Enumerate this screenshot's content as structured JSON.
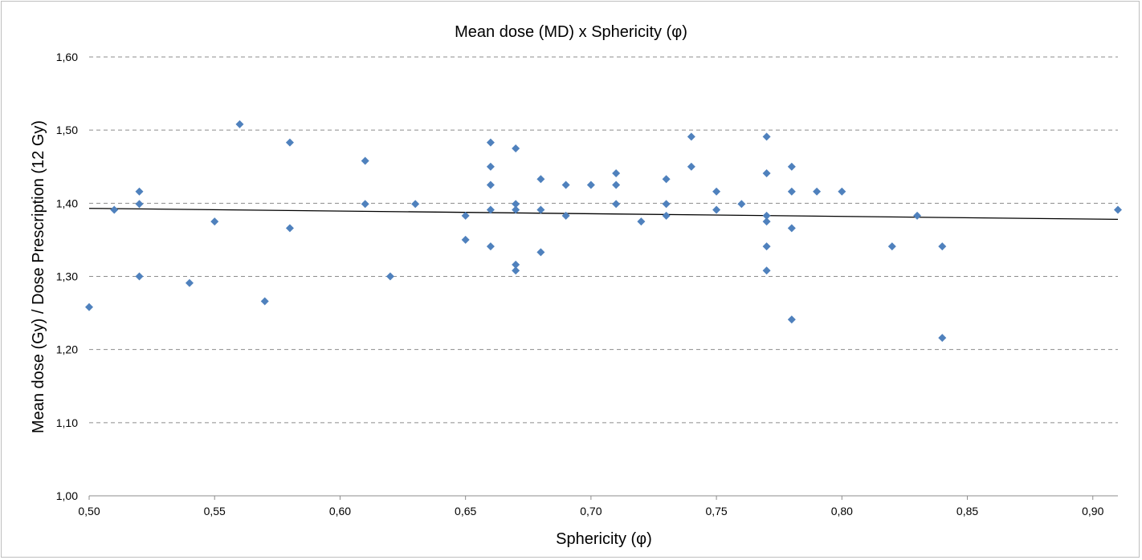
{
  "chart_data": {
    "type": "scatter",
    "title": "Mean dose (MD) x Sphericity (φ)",
    "xlabel": "Sphericity (φ)",
    "ylabel": "Mean dose (Gy) / Dose Prescription (12 Gy)",
    "xlim": [
      0.5,
      0.91
    ],
    "ylim": [
      1.0,
      1.6
    ],
    "x_ticks": [
      "0,50",
      "0,55",
      "0,60",
      "0,65",
      "0,70",
      "0,75",
      "0,80",
      "0,85",
      "0,90"
    ],
    "y_ticks": [
      "1,00",
      "1,10",
      "1,20",
      "1,30",
      "1,40",
      "1,50",
      "1,60"
    ],
    "grid": "horizontal-dashed",
    "legend": "none",
    "marker_color": "#4f81bd",
    "trendline": {
      "type": "linear",
      "y_at_xmin": 1.393,
      "y_at_xmax": 1.378
    },
    "points": [
      [
        0.5,
        1.258
      ],
      [
        0.51,
        1.391
      ],
      [
        0.52,
        1.416
      ],
      [
        0.52,
        1.399
      ],
      [
        0.52,
        1.3
      ],
      [
        0.54,
        1.291
      ],
      [
        0.55,
        1.375
      ],
      [
        0.56,
        1.508
      ],
      [
        0.57,
        1.266
      ],
      [
        0.58,
        1.483
      ],
      [
        0.58,
        1.366
      ],
      [
        0.61,
        1.458
      ],
      [
        0.61,
        1.399
      ],
      [
        0.62,
        1.3
      ],
      [
        0.63,
        1.399
      ],
      [
        0.65,
        1.383
      ],
      [
        0.65,
        1.35
      ],
      [
        0.66,
        1.483
      ],
      [
        0.66,
        1.45
      ],
      [
        0.66,
        1.425
      ],
      [
        0.66,
        1.391
      ],
      [
        0.66,
        1.341
      ],
      [
        0.67,
        1.475
      ],
      [
        0.67,
        1.399
      ],
      [
        0.67,
        1.391
      ],
      [
        0.67,
        1.316
      ],
      [
        0.67,
        1.308
      ],
      [
        0.68,
        1.433
      ],
      [
        0.68,
        1.391
      ],
      [
        0.68,
        1.333
      ],
      [
        0.69,
        1.425
      ],
      [
        0.69,
        1.383
      ],
      [
        0.7,
        1.425
      ],
      [
        0.71,
        1.441
      ],
      [
        0.71,
        1.425
      ],
      [
        0.71,
        1.399
      ],
      [
        0.72,
        1.375
      ],
      [
        0.73,
        1.433
      ],
      [
        0.73,
        1.399
      ],
      [
        0.73,
        1.383
      ],
      [
        0.74,
        1.491
      ],
      [
        0.74,
        1.45
      ],
      [
        0.75,
        1.416
      ],
      [
        0.75,
        1.391
      ],
      [
        0.76,
        1.399
      ],
      [
        0.77,
        1.491
      ],
      [
        0.77,
        1.441
      ],
      [
        0.77,
        1.383
      ],
      [
        0.77,
        1.375
      ],
      [
        0.77,
        1.341
      ],
      [
        0.77,
        1.308
      ],
      [
        0.78,
        1.45
      ],
      [
        0.78,
        1.416
      ],
      [
        0.78,
        1.366
      ],
      [
        0.78,
        1.241
      ],
      [
        0.79,
        1.416
      ],
      [
        0.8,
        1.416
      ],
      [
        0.82,
        1.341
      ],
      [
        0.83,
        1.383
      ],
      [
        0.84,
        1.341
      ],
      [
        0.84,
        1.216
      ],
      [
        0.91,
        1.391
      ]
    ]
  }
}
